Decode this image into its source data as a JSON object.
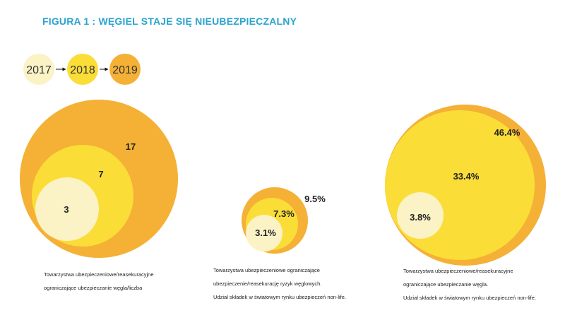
{
  "figure": {
    "title": "FIGURA 1 : WĘGIEL STAJE SIĘ NIEUBEZPIECZALNY"
  },
  "colors": {
    "2017": "#fbf2c6",
    "2018": "#fbdd37",
    "2019": "#f4b136",
    "label": "#222222"
  },
  "chart_data": [
    {
      "type": "bubble",
      "title": "",
      "legend": {
        "placement": "top-left",
        "entries": [
          "2017",
          "2018",
          "2019"
        ]
      },
      "series": [
        {
          "name": "2019",
          "value": 17,
          "label": "17"
        },
        {
          "name": "2018",
          "value": 7,
          "label": "7"
        },
        {
          "name": "2017",
          "value": 3,
          "label": "3"
        }
      ],
      "caption": [
        "Towarzystwa ubezpieczeniowe/reasekuracyjne",
        "ograniczające ubezpieczanie węgla/liczba"
      ]
    },
    {
      "type": "bubble",
      "title": "",
      "series": [
        {
          "name": "2019",
          "value": 9.5,
          "label": "9.5%"
        },
        {
          "name": "2018",
          "value": 7.3,
          "label": "7.3%"
        },
        {
          "name": "2017",
          "value": 3.1,
          "label": "3.1%"
        }
      ],
      "caption": [
        "Towarzystwa ubezpieczeniowe ograniczające",
        "ubezpieczenie/reasekurację ryzyk węglowych.",
        "Udział składek w światowym rynku ubezpieczeń non-life."
      ]
    },
    {
      "type": "bubble",
      "title": "",
      "series": [
        {
          "name": "2019",
          "value": 46.4,
          "label": "46.4%"
        },
        {
          "name": "2018",
          "value": 33.4,
          "label": "33.4%"
        },
        {
          "name": "2017",
          "value": 3.8,
          "label": "3.8%"
        }
      ],
      "caption": [
        "Towarzystwa ubezpieczeniowe/reasekuracyjne",
        "ograniczające ubezpieczanie węgla.",
        "Udział składek w światowym rynku ubezpieczeń non-life."
      ]
    }
  ]
}
